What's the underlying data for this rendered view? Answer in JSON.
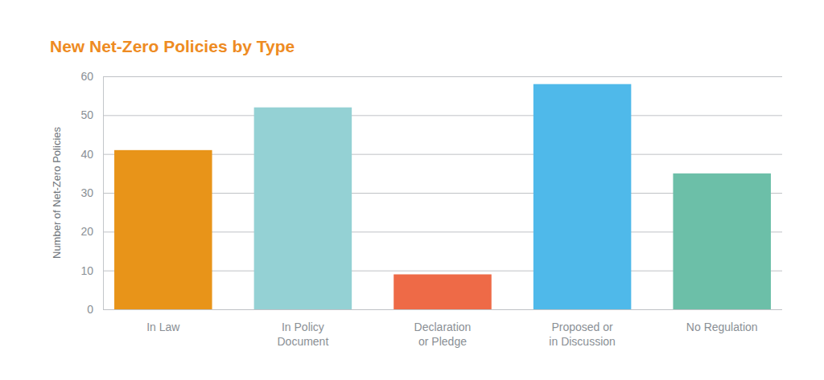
{
  "chart_data": {
    "type": "bar",
    "title": "New Net-Zero Policies by Type",
    "ylabel": "Number of Net-Zero Policies",
    "categories": [
      "In Law",
      "In Policy\nDocument",
      "Declaration\nor Pledge",
      "Proposed or\nin Discussion",
      "No Regulation"
    ],
    "values": [
      41,
      52,
      9,
      58,
      35
    ],
    "colors": [
      "#e89419",
      "#94d1d4",
      "#ee6a47",
      "#4fb9ea",
      "#6cbfa8"
    ],
    "ylim": [
      0,
      60
    ],
    "yticks": [
      0,
      10,
      20,
      30,
      40,
      50,
      60
    ],
    "grid": true
  }
}
